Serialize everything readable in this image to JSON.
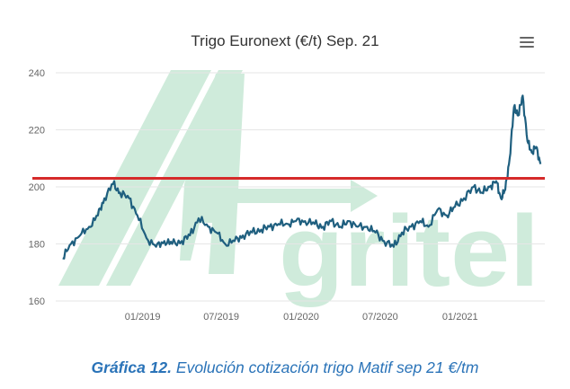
{
  "chart_data": {
    "type": "line",
    "title": "Trigo Euronext (€/t) Sep. 21",
    "ylim": [
      160,
      240
    ],
    "y_ticks": [
      "240",
      "220",
      "200",
      "180",
      "160"
    ],
    "x_ticks": [
      "01/2019",
      "07/2019",
      "01/2020",
      "07/2020",
      "01/2021"
    ],
    "x_range": [
      "2018-06-15",
      "2021-07-15"
    ],
    "grid": true,
    "reference_line": {
      "value": 203,
      "color": "#d62a2a"
    },
    "watermark": "Agritel",
    "series": [
      {
        "color": "#1f5f7f",
        "x": [
          "2018-07-01",
          "2018-07-20",
          "2018-08-10",
          "2018-08-31",
          "2018-09-20",
          "2018-10-05",
          "2018-10-25",
          "2018-11-10",
          "2018-12-01",
          "2018-12-20",
          "2019-01-10",
          "2019-02-01",
          "2019-02-20",
          "2019-03-10",
          "2019-04-01",
          "2019-04-20",
          "2019-05-10",
          "2019-06-01",
          "2019-06-20",
          "2019-07-10",
          "2019-08-01",
          "2019-08-20",
          "2019-09-10",
          "2019-10-01",
          "2019-10-20",
          "2019-11-10",
          "2019-12-01",
          "2019-12-20",
          "2020-01-10",
          "2020-02-01",
          "2020-02-20",
          "2020-03-10",
          "2020-04-01",
          "2020-04-20",
          "2020-05-10",
          "2020-06-01",
          "2020-06-20",
          "2020-07-10",
          "2020-08-01",
          "2020-08-20",
          "2020-09-10",
          "2020-10-01",
          "2020-10-20",
          "2020-11-10",
          "2020-12-01",
          "2020-12-20",
          "2021-01-10",
          "2021-02-01",
          "2021-02-20",
          "2021-03-10",
          "2021-03-25",
          "2021-04-05",
          "2021-04-15",
          "2021-04-25",
          "2021-05-05",
          "2021-05-15",
          "2021-05-25",
          "2021-06-05",
          "2021-06-15",
          "2021-06-25",
          "2021-07-05"
        ],
        "values": [
          175,
          180,
          183,
          186,
          190,
          196,
          201,
          198,
          196,
          190,
          182,
          179,
          181,
          180,
          181,
          183,
          189,
          186,
          184,
          180,
          181,
          183,
          184,
          185,
          186,
          187,
          187,
          188,
          188,
          187,
          186,
          188,
          186,
          188,
          186,
          186,
          184,
          181,
          179,
          184,
          186,
          188,
          186,
          192,
          190,
          193,
          196,
          200,
          198,
          200,
          202,
          196,
          199,
          210,
          228,
          225,
          232,
          216,
          212,
          214,
          208
        ]
      }
    ]
  },
  "caption": {
    "label": "Gráfica 12.",
    "text": " Evolución cotización trigo Matif sep 21 €/tm"
  },
  "menu_icon": "hamburger-menu-icon"
}
